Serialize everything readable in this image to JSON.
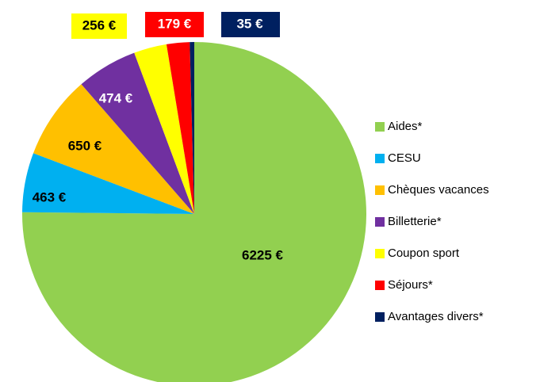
{
  "chart_data": {
    "type": "pie",
    "categories": [
      "Aides*",
      "CESU",
      "Chèques vacances",
      "Billetterie*",
      "Coupon sport",
      "Séjours*",
      "Avantages divers*"
    ],
    "values": [
      6225,
      463,
      650,
      474,
      256,
      179,
      35
    ],
    "value_labels": [
      "6225 €",
      "463 €",
      "650 €",
      "474 €",
      "256 €",
      "179 €",
      "35 €"
    ],
    "colors": [
      "#92d050",
      "#00b0f0",
      "#ffc000",
      "#7030a0",
      "#ffff00",
      "#ff0000",
      "#002060"
    ],
    "legend": "right"
  }
}
